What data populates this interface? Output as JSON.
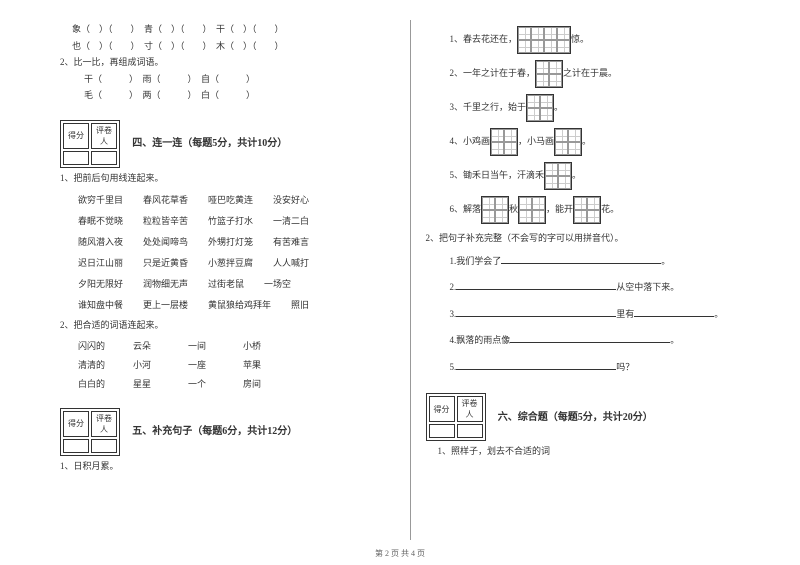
{
  "leftCol": {
    "topLines": [
      "象（　）（　　）　青（　）（　　）　干（　）（　　）",
      "也（　）（　　）　寸（　）（　　）　木（　）（　　）"
    ],
    "q2Title": "2、比一比，再组成词语。",
    "q2Rows": [
      "干（　　　）　雨（　　　）　自（　　　）",
      "毛（　　　）　两（　　　）　白（　　　）"
    ],
    "scoreLabels": [
      "得分",
      "评卷人"
    ],
    "sec4": {
      "title": "四、连一连（每题5分，共计10分）",
      "q1": "1、把前后句用线连起来。",
      "rows": [
        [
          "欲穷千里目",
          "春风花草香",
          "哑巴吃黄连",
          "没安好心"
        ],
        [
          "春眠不觉晓",
          "粒粒皆辛苦",
          "竹篮子打水",
          "一清二白"
        ],
        [
          "随风潜入夜",
          "处处闻啼鸟",
          "外甥打灯笼",
          "有苦难言"
        ],
        [
          "迟日江山丽",
          "只是近黄昏",
          "小葱拌豆腐",
          "人人喊打"
        ],
        [
          "夕阳无限好",
          "润物细无声",
          "过街老鼠",
          "一场空"
        ],
        [
          "谁知盘中餐",
          "更上一层楼",
          "黄鼠狼给鸡拜年",
          "照旧"
        ]
      ],
      "q2": "2、把合适的词语连起来。",
      "pairs": [
        [
          "闪闪的",
          "云朵",
          "一间",
          "小桥"
        ],
        [
          "清清的",
          "小河",
          "一座",
          "苹果"
        ],
        [
          "白白的",
          "星星",
          "一个",
          "房间"
        ]
      ]
    },
    "sec5": {
      "title": "五、补充句子（每题6分，共计12分）",
      "q1": "1、日积月累。"
    }
  },
  "rightCol": {
    "poems": [
      {
        "num": "1、",
        "pre": "春去花还在，",
        "cells": 4,
        "post": "惊。"
      },
      {
        "num": "2、",
        "pre": "一年之计在于春，",
        "cells": 2,
        "post": "之计在于晨。"
      },
      {
        "num": "3、",
        "pre": "千里之行，始于",
        "cells": 2,
        "post": "。"
      },
      {
        "num": "4、",
        "pre": "小鸡画",
        "cells": 2,
        "mid": "，小马画",
        "cells2": 2,
        "post": "。"
      },
      {
        "num": "5、",
        "pre": "锄禾日当午，汗滴禾",
        "cells": 2,
        "post": "。"
      },
      {
        "num": "6、",
        "pre": "解落",
        "cells": 2,
        "mid": "秋",
        "cells2": 2,
        "mid2": "，能开",
        "cells3": 2,
        "post": "花。"
      }
    ],
    "q2Title": "2、把句子补充完整（不会写的字可以用拼音代）。",
    "fills": [
      {
        "n": "1.",
        "pre": "我们学会了",
        "tail": "。"
      },
      {
        "n": "2.",
        "blankFirst": true,
        "post": "从空中落下来。"
      },
      {
        "n": "3.",
        "blankFirst": true,
        "post": "里有",
        "tail": "。",
        "blank2": true
      },
      {
        "n": "4.",
        "pre": "飘落的雨点像",
        "tail": "。"
      },
      {
        "n": "5.",
        "blankFirst": true,
        "post": "吗？"
      }
    ],
    "scoreLabels": [
      "得分",
      "评卷人"
    ],
    "sec6": {
      "title": "六、综合题（每题5分，共计20分）",
      "q1": "1、照样子，划去不合适的词"
    }
  },
  "footer": "第 2 页  共 4 页"
}
